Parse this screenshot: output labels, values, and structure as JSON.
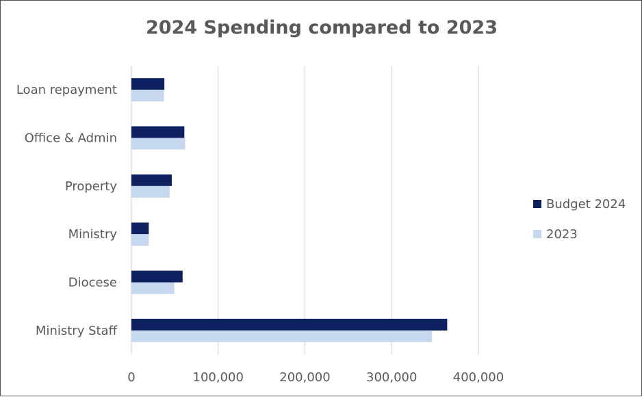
{
  "chart_data": {
    "type": "bar",
    "orientation": "horizontal",
    "title": "2024 Spending compared to 2023",
    "xlabel": "",
    "ylabel": "",
    "categories": [
      "Loan repayment",
      "Office & Admin",
      "Property",
      "Ministry",
      "Diocese",
      "Ministry Staff"
    ],
    "series": [
      {
        "name": "Budget 2024",
        "color": "#0d2160",
        "values": [
          38000,
          61000,
          46500,
          20000,
          59000,
          364000
        ]
      },
      {
        "name": "2023",
        "color": "#c6d8f0",
        "values": [
          37500,
          62000,
          44000,
          20000,
          49500,
          346500
        ]
      }
    ],
    "xlim": [
      0,
      400000
    ],
    "xticks": [
      "0",
      "100,000",
      "200,000",
      "300,000",
      "400,000"
    ],
    "grid": true,
    "legend_position": "right"
  },
  "colors": {
    "gridline": "#d9d9d9",
    "axis_text": "#595959"
  }
}
